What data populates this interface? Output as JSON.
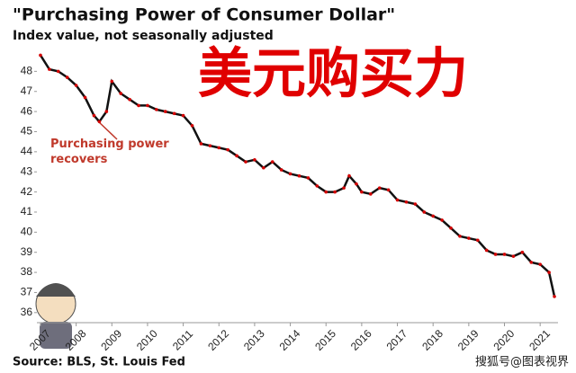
{
  "chart_data": {
    "type": "line",
    "title": "\"Purchasing Power of Consumer Dollar\"",
    "subtitle": "Index value, not seasonally adjusted",
    "overlay_title": "美元购买力",
    "annotation": "Purchasing power recovers",
    "source": "Source: BLS, St. Louis Fed",
    "watermark": "搜狐号@图表视界",
    "x": [
      2007.0,
      2007.25,
      2007.5,
      2007.75,
      2008.0,
      2008.25,
      2008.5,
      2008.65,
      2008.85,
      2009.0,
      2009.25,
      2009.5,
      2009.75,
      2010.0,
      2010.25,
      2010.5,
      2010.75,
      2011.0,
      2011.25,
      2011.5,
      2011.75,
      2012.0,
      2012.25,
      2012.5,
      2012.75,
      2013.0,
      2013.25,
      2013.5,
      2013.75,
      2014.0,
      2014.25,
      2014.5,
      2014.75,
      2015.0,
      2015.25,
      2015.5,
      2015.65,
      2015.85,
      2016.0,
      2016.25,
      2016.5,
      2016.75,
      2017.0,
      2017.25,
      2017.5,
      2017.75,
      2018.0,
      2018.25,
      2018.5,
      2018.75,
      2019.0,
      2019.25,
      2019.5,
      2019.75,
      2020.0,
      2020.25,
      2020.5,
      2020.75,
      2021.0,
      2021.25,
      2021.4
    ],
    "series": [
      {
        "name": "Purchasing Power",
        "color": "#111111",
        "marker_color": "#d40000",
        "values": [
          48.8,
          48.1,
          48.0,
          47.7,
          47.3,
          46.7,
          45.8,
          45.5,
          46.0,
          47.5,
          46.9,
          46.6,
          46.3,
          46.3,
          46.1,
          46.0,
          45.9,
          45.8,
          45.3,
          44.4,
          44.3,
          44.2,
          44.1,
          43.8,
          43.5,
          43.6,
          43.2,
          43.5,
          43.1,
          42.9,
          42.8,
          42.7,
          42.3,
          42.0,
          42.0,
          42.2,
          42.8,
          42.4,
          42.0,
          41.9,
          42.2,
          42.1,
          41.6,
          41.5,
          41.4,
          41.0,
          40.8,
          40.6,
          40.2,
          39.8,
          39.7,
          39.6,
          39.1,
          38.9,
          38.9,
          38.8,
          39.0,
          38.5,
          38.4,
          38.0,
          36.8
        ]
      }
    ],
    "xlim": [
      2006.9,
      2021.5
    ],
    "xticks": [
      2007,
      2008,
      2009,
      2010,
      2011,
      2012,
      2013,
      2014,
      2015,
      2016,
      2017,
      2018,
      2019,
      2020,
      2021
    ],
    "ylim": [
      35.5,
      49
    ],
    "yticks": [
      36,
      37,
      38,
      39,
      40,
      41,
      42,
      43,
      44,
      45,
      46,
      47,
      48
    ]
  }
}
